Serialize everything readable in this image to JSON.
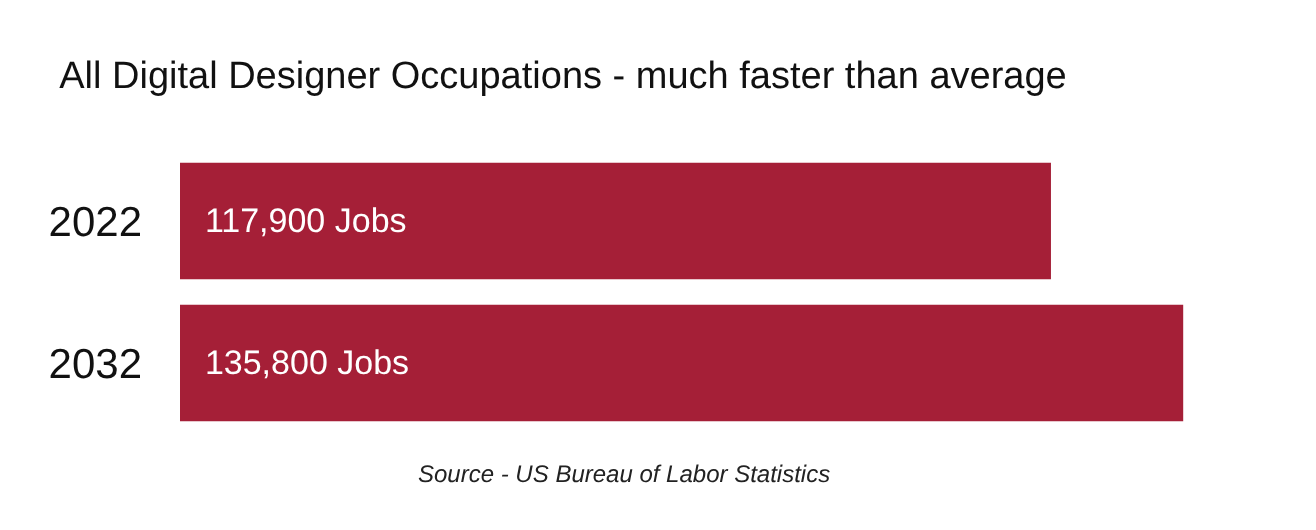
{
  "chart_data": {
    "type": "bar",
    "orientation": "horizontal",
    "title": "All Digital Designer Occupations - much faster than average",
    "categories": [
      "2022",
      "2032"
    ],
    "series": [
      {
        "color": "#a51f37",
        "values": [
          117900,
          135800
        ],
        "value_labels": [
          "117,900 Jobs",
          "135,800 Jobs"
        ]
      }
    ],
    "annotations": [
      "Source - US Bureau of Labor Statistics"
    ]
  }
}
